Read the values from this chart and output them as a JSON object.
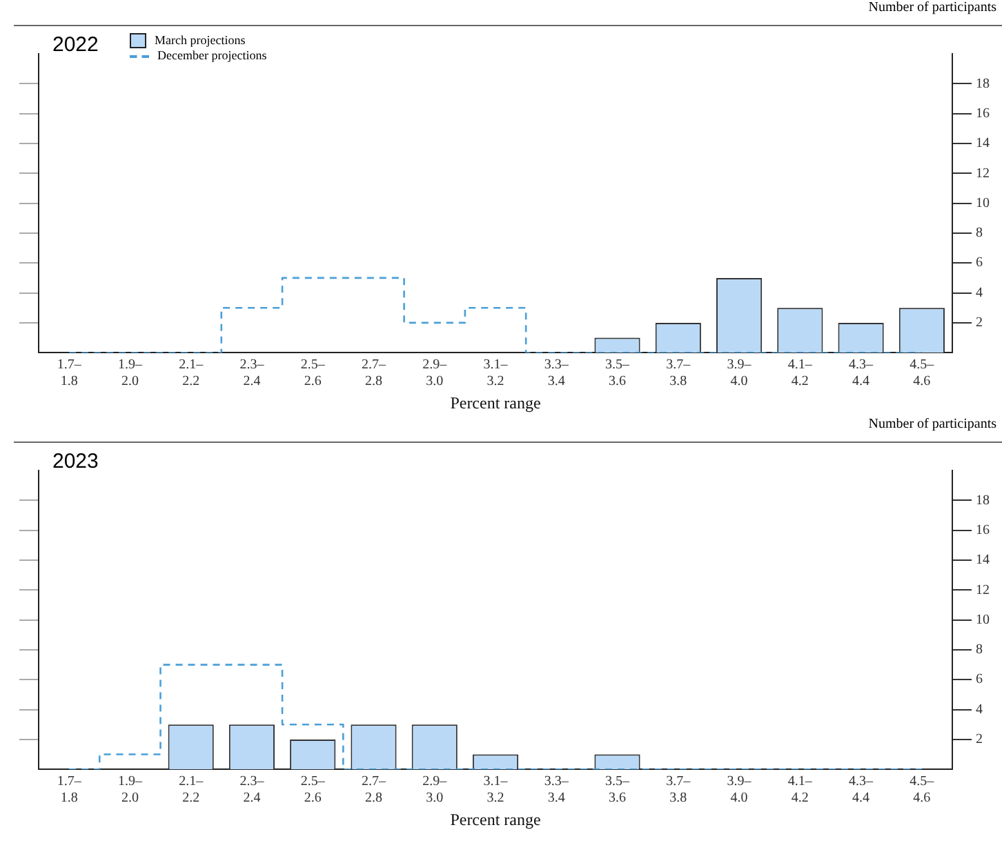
{
  "chart_data": [
    {
      "type": "bar",
      "title": "2022",
      "xlabel": "Percent range",
      "ylabel": "Number of participants",
      "categories": [
        "1.7–\n1.8",
        "1.9–\n2.0",
        "2.1–\n2.2",
        "2.3–\n2.4",
        "2.5–\n2.6",
        "2.7–\n2.8",
        "2.9–\n3.0",
        "3.1–\n3.2",
        "3.3–\n3.4",
        "3.5–\n3.6",
        "3.7–\n3.8",
        "3.9–\n4.0",
        "4.1–\n4.2",
        "4.3–\n4.4",
        "4.5–\n4.6"
      ],
      "series": [
        {
          "name": "March projections",
          "color": "#b9d9f7",
          "values": [
            0,
            0,
            0,
            0,
            0,
            0,
            0,
            0,
            0,
            1,
            2,
            5,
            3,
            2,
            3
          ]
        },
        {
          "name": "December projections",
          "type": "step",
          "color": "#4a9fd8",
          "line_style": "dashed",
          "values": [
            0,
            0,
            0,
            3,
            5,
            5,
            2,
            3,
            0,
            0,
            0,
            0,
            0,
            0,
            0
          ]
        }
      ],
      "ylim": [
        0,
        20
      ],
      "yticks": [
        2,
        4,
        6,
        8,
        10,
        12,
        14,
        16,
        18
      ],
      "grid": false,
      "legend": "top left"
    },
    {
      "type": "bar",
      "title": "2023",
      "xlabel": "Percent range",
      "ylabel": "Number of participants",
      "categories": [
        "1.7–\n1.8",
        "1.9–\n2.0",
        "2.1–\n2.2",
        "2.3–\n2.4",
        "2.5–\n2.6",
        "2.7–\n2.8",
        "2.9–\n3.0",
        "3.1–\n3.2",
        "3.3–\n3.4",
        "3.5–\n3.6",
        "3.7–\n3.8",
        "3.9–\n4.0",
        "4.1–\n4.2",
        "4.3–\n4.4",
        "4.5–\n4.6"
      ],
      "series": [
        {
          "color": "#b9d9f7",
          "values": [
            0,
            0,
            3,
            3,
            2,
            3,
            3,
            1,
            0,
            1,
            0,
            0,
            0,
            0,
            0
          ]
        },
        {
          "type": "step",
          "color": "#4a9fd8",
          "line_style": "dashed",
          "values": [
            0,
            1,
            7,
            7,
            3,
            0,
            0,
            0,
            0,
            0,
            0,
            0,
            0,
            0,
            0
          ]
        }
      ],
      "ylim": [
        0,
        20
      ],
      "yticks": [
        2,
        4,
        6,
        8,
        10,
        12,
        14,
        16,
        18
      ],
      "grid": false,
      "legend": false
    }
  ]
}
